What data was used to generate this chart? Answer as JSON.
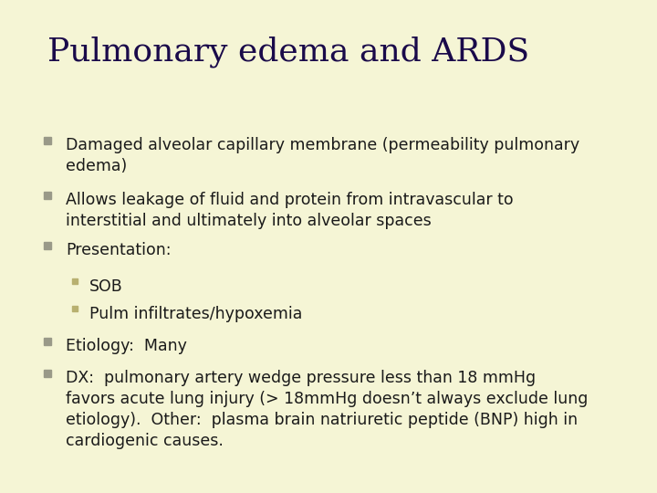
{
  "title": "Pulmonary edema and ARDS",
  "background_color": "#f5f5d5",
  "title_color": "#1a0a4a",
  "title_fontsize": 26,
  "title_font": "serif",
  "text_color": "#1a1a1a",
  "bullet_color": "#999988",
  "sub_bullet_color": "#b8b070",
  "body_fontsize": 12.5,
  "body_font": "sans-serif",
  "bullet1": "Damaged alveolar capillary membrane (permeability pulmonary\nedema)",
  "bullet2": "Allows leakage of fluid and protein from intravascular to\ninterstitial and ultimately into alveolar spaces",
  "bullet3": "Presentation:",
  "sub_bullet1": "SOB",
  "sub_bullet2": "Pulm infiltrates/hypoxemia",
  "bullet4": "Etiology:  Many",
  "bullet5": "DX:  pulmonary artery wedge pressure less than 18 mmHg\nfavors acute lung injury (> 18mmHg doesn’t always exclude lung\netiology).  Other:  plasma brain natriuretic peptide (BNP) high in\ncardiogenic causes."
}
